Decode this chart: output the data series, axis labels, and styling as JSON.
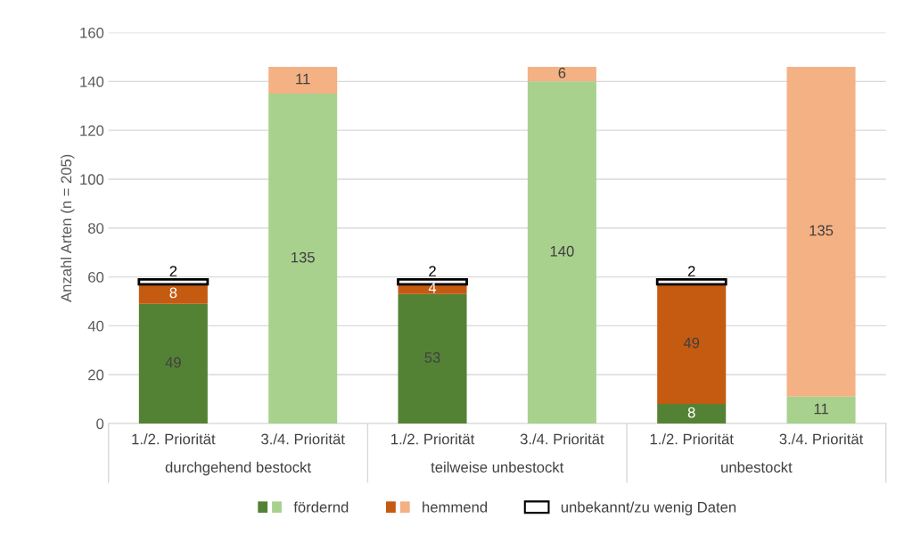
{
  "chart_data": {
    "type": "bar",
    "stacked": true,
    "ylabel": "Anzahl Arten (n = 205)",
    "categories": [
      "1./2. Priorität",
      "3./4. Priorität",
      "1./2. Priorität",
      "3./4. Priorität",
      "1./2. Priorität",
      "3./4. Priorität"
    ],
    "annotations": [
      "durchgehend bestockt",
      "teilweise unbestockt",
      "unbestockt"
    ],
    "series": [
      {
        "name": "fördernd",
        "colors": [
          "#548235",
          "#a9d18e",
          "#548235",
          "#a9d18e",
          "#548235",
          "#a9d18e"
        ],
        "values": [
          49,
          135,
          53,
          140,
          8,
          11
        ]
      },
      {
        "name": "hemmend",
        "colors": [
          "#c55a11",
          "#f4b183",
          "#c55a11",
          "#f4b183",
          "#c55a11",
          "#f4b183"
        ],
        "values": [
          8,
          11,
          4,
          6,
          49,
          135
        ]
      },
      {
        "name": "unbekannt/zu wenig Daten",
        "color": "#ffffff",
        "values": [
          2,
          null,
          2,
          null,
          2,
          null
        ]
      }
    ],
    "ylim": [
      0,
      160
    ],
    "yticks": [
      0,
      20,
      40,
      60,
      80,
      100,
      120,
      140,
      160
    ],
    "grid": "y",
    "data_labels": true,
    "legend": "bottom"
  }
}
